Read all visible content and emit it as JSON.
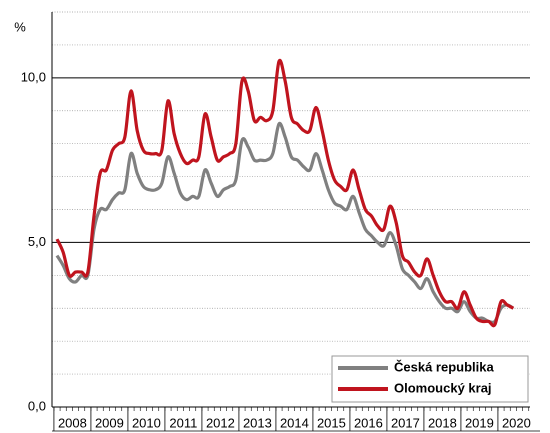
{
  "chart_data": {
    "type": "line",
    "y_label": "%",
    "categories": [
      "2008",
      null,
      null,
      null,
      null,
      null,
      "2009",
      null,
      null,
      null,
      null,
      null,
      "2010",
      null,
      null,
      null,
      null,
      null,
      "2011",
      null,
      null,
      null,
      null,
      null,
      "2012",
      null,
      null,
      null,
      null,
      null,
      "2013",
      null,
      null,
      null,
      null,
      null,
      "2014",
      null,
      null,
      null,
      null,
      null,
      "2015",
      null,
      null,
      null,
      null,
      null,
      "2016",
      null,
      null,
      null,
      null,
      null,
      "2017",
      null,
      null,
      null,
      null,
      null,
      "2018",
      null,
      null,
      null,
      null,
      null,
      "2019",
      null,
      null,
      null,
      null,
      null,
      "2020",
      null,
      null
    ],
    "series": [
      {
        "name": "Česká republika",
        "color": "#808080",
        "values": [
          4.6,
          4.3,
          3.9,
          3.8,
          4.0,
          4.0,
          5.4,
          6.0,
          6.0,
          6.3,
          6.5,
          6.6,
          7.7,
          7.1,
          6.7,
          6.6,
          6.6,
          6.8,
          7.6,
          7.1,
          6.5,
          6.3,
          6.4,
          6.4,
          7.2,
          6.8,
          6.4,
          6.6,
          6.7,
          6.9,
          8.1,
          7.9,
          7.5,
          7.5,
          7.5,
          7.7,
          8.6,
          8.2,
          7.6,
          7.5,
          7.3,
          7.2,
          7.7,
          7.2,
          6.6,
          6.2,
          6.1,
          6.0,
          6.4,
          5.9,
          5.4,
          5.2,
          5.0,
          4.9,
          5.3,
          4.9,
          4.2,
          4.0,
          3.8,
          3.6,
          3.9,
          3.5,
          3.2,
          3.0,
          3.0,
          2.9,
          3.2,
          2.9,
          2.7,
          2.7,
          2.6,
          2.6,
          3.0,
          3.1,
          3.0
        ]
      },
      {
        "name": "Olomoucký kraj",
        "color": "#c0141e",
        "values": [
          5.1,
          4.7,
          4.0,
          4.1,
          4.1,
          4.1,
          5.8,
          7.1,
          7.2,
          7.8,
          8.0,
          8.2,
          9.6,
          8.4,
          7.8,
          7.7,
          7.7,
          7.8,
          9.3,
          8.3,
          7.7,
          7.4,
          7.5,
          7.6,
          8.9,
          8.2,
          7.5,
          7.6,
          7.7,
          8.0,
          9.9,
          9.6,
          8.7,
          8.8,
          8.7,
          9.0,
          10.5,
          9.9,
          8.8,
          8.6,
          8.4,
          8.4,
          9.1,
          8.4,
          7.5,
          6.9,
          6.7,
          6.6,
          7.2,
          6.6,
          6.0,
          5.8,
          5.5,
          5.4,
          6.1,
          5.6,
          4.6,
          4.4,
          4.1,
          4.0,
          4.5,
          4.0,
          3.5,
          3.2,
          3.2,
          3.0,
          3.5,
          3.1,
          2.7,
          2.6,
          2.6,
          2.5,
          3.2,
          3.1,
          3.0
        ]
      }
    ],
    "ylim": [
      0,
      12
    ],
    "yticks": [
      {
        "value": 0,
        "label": "0,0"
      },
      {
        "value": 5,
        "label": "5,0"
      },
      {
        "value": 10,
        "label": "10,0"
      }
    ],
    "minor_yticks": [
      1,
      2,
      3,
      4,
      6,
      7,
      8,
      9,
      11,
      12
    ],
    "grid": true,
    "legend": "lower right"
  }
}
